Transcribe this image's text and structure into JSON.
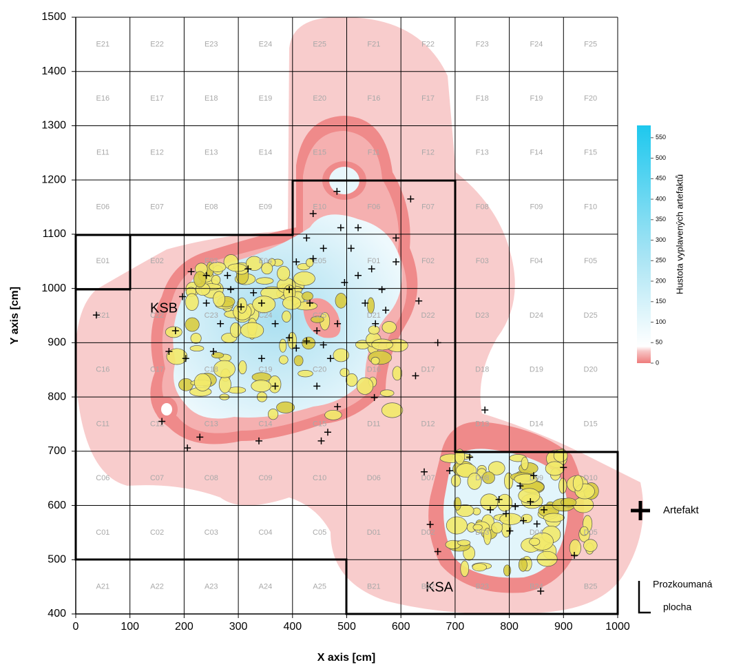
{
  "chart_data": {
    "type": "scatter",
    "xlabel": "X axis [cm]",
    "ylabel": "Y axis [cm]",
    "xlim": [
      0,
      1000
    ],
    "ylim": [
      400,
      1500
    ],
    "xticks": [
      0,
      100,
      200,
      300,
      400,
      500,
      600,
      700,
      800,
      900,
      1000
    ],
    "yticks": [
      400,
      500,
      600,
      700,
      800,
      900,
      1000,
      1100,
      1200,
      1300,
      1400,
      1500
    ],
    "grid": true,
    "cells": [
      [
        "E21",
        "E22",
        "E23",
        "E24",
        "E25",
        "F21",
        "F22",
        "F23",
        "F24",
        "F25"
      ],
      [
        "E16",
        "E17",
        "E18",
        "E19",
        "E20",
        "F16",
        "F17",
        "F18",
        "F19",
        "F20"
      ],
      [
        "E11",
        "E12",
        "E13",
        "E14",
        "E15",
        "F11",
        "F12",
        "F13",
        "F14",
        "F15"
      ],
      [
        "E06",
        "E07",
        "E08",
        "E09",
        "E10",
        "F06",
        "F07",
        "F08",
        "F09",
        "F10"
      ],
      [
        "E01",
        "E02",
        "E03",
        "E04",
        "E05",
        "F01",
        "F02",
        "F03",
        "F04",
        "F05"
      ],
      [
        "C21",
        "C22",
        "C23",
        "C24",
        "C25",
        "D21",
        "D22",
        "D23",
        "D24",
        "D25"
      ],
      [
        "C16",
        "C17",
        "C18",
        "C19",
        "C20",
        "D16",
        "D17",
        "D18",
        "D19",
        "D20"
      ],
      [
        "C11",
        "C12",
        "C13",
        "C14",
        "C15",
        "D11",
        "D12",
        "D13",
        "D14",
        "D15"
      ],
      [
        "C06",
        "C07",
        "C08",
        "C09",
        "C10",
        "D06",
        "D07",
        "D08",
        "D09",
        "D10"
      ],
      [
        "C01",
        "C02",
        "C03",
        "C04",
        "C05",
        "D01",
        "D02",
        "D03",
        "D04",
        "D05"
      ],
      [
        "A21",
        "A22",
        "A23",
        "A24",
        "A25",
        "B21",
        "B22",
        "B23",
        "B24",
        "B25"
      ]
    ],
    "annotations": [
      "KSB",
      "KSA"
    ],
    "colorbar": {
      "label": "Hustota vyplavených artefaktů",
      "lim": [
        0,
        580
      ],
      "ticks": [
        0,
        50,
        100,
        150,
        200,
        250,
        300,
        350,
        400,
        450,
        500,
        550
      ]
    },
    "area_legend": [
      "Prozkoumaná",
      "plocha"
    ],
    "series": [
      {
        "name": "Artefakt",
        "color": "#000000",
        "x": [
          38,
          482,
          618,
          633,
          627,
          668,
          551,
          465,
          453,
          338,
          206,
          229,
          159,
          858,
          920,
          900,
          755,
          690,
          643,
          654,
          668,
          727,
          765,
          794,
          811,
          826,
          839,
          851,
          801,
          820,
          864,
          845,
          781,
          213,
          241,
          280,
          318,
          286,
          328,
          343,
          305,
          241,
          197,
          184,
          203,
          172,
          368,
          394,
          407,
          426,
          445,
          457,
          470,
          483,
          496,
          521,
          546,
          565,
          591,
          572,
          553,
          534,
          508,
          489,
          457,
          426,
          438,
          407,
          521,
          591,
          445,
          483,
          368,
          343,
          254,
          267,
          432,
          394,
          438
        ],
        "y": [
          951,
          1179,
          1165,
          977,
          839,
          900,
          799,
          735,
          719,
          719,
          706,
          726,
          755,
          442,
          508,
          670,
          776,
          664,
          662,
          565,
          515,
          689,
          592,
          585,
          598,
          572,
          607,
          566,
          553,
          636,
          592,
          655,
          611,
          1031,
          1024,
          1024,
          1036,
          998,
          992,
          973,
          966,
          973,
          985,
          922,
          871,
          884,
          935,
          909,
          890,
          903,
          922,
          896,
          871,
          935,
          1011,
          1024,
          1036,
          998,
          1049,
          960,
          935,
          973,
          1074,
          1112,
          1074,
          1093,
          1138,
          1049,
          1112,
          1093,
          820,
          782,
          820,
          871,
          884,
          935,
          973,
          998,
          1055
        ]
      }
    ]
  }
}
